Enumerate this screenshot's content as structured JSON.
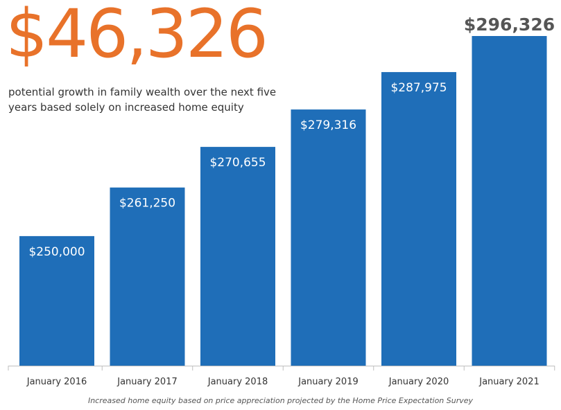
{
  "headline": "$46,326",
  "subheadline": "potential growth in family wealth over the next five years based solely on increased home equity",
  "footnote": "Increased home equity based on price appreciation projected by the Home Price Expectation Survey",
  "colors": {
    "bar": "#1f6eb8",
    "headline": "#e8722a",
    "bar_label": "#ffffff",
    "last_label": "#555555"
  },
  "chart_data": {
    "type": "bar",
    "categories": [
      "January 2016",
      "January 2017",
      "January 2018",
      "January 2019",
      "January 2020",
      "January 2021"
    ],
    "values": [
      250000,
      261250,
      270655,
      279316,
      287975,
      296326
    ],
    "labels": [
      "$250,000",
      "$261,250",
      "$270,655",
      "$279,316",
      "$287,975",
      "$296,326"
    ],
    "title": "",
    "xlabel": "",
    "ylabel": "",
    "ylim": [
      220000,
      300000
    ],
    "grid": false,
    "legend": "none"
  }
}
